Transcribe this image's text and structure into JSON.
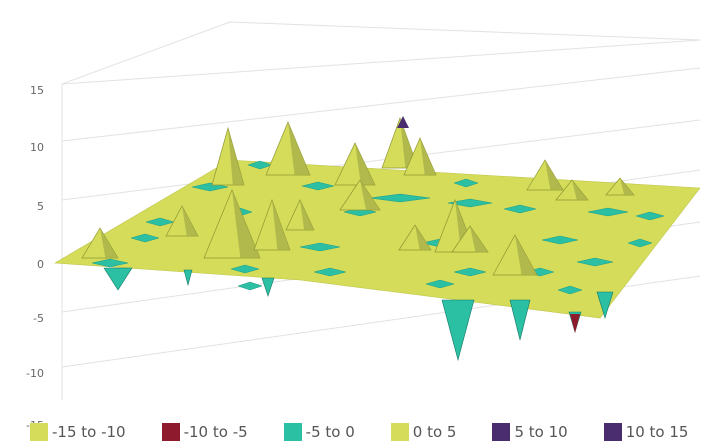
{
  "chart_data": {
    "type": "surface",
    "z_axis": {
      "ticks": [
        "15",
        "10",
        "5",
        "0",
        "-5",
        "-10",
        "-15"
      ],
      "range": [
        -15,
        15
      ]
    },
    "legend_position": "bottom",
    "legend": [
      {
        "label": "-15 to -10",
        "color": "#d4dc5a"
      },
      {
        "label": "-10 to -5",
        "color": "#8e1a2e"
      },
      {
        "label": "-5 to 0",
        "color": "#2bbfa4"
      },
      {
        "label": "0 to 5",
        "color": "#d4dc5a"
      },
      {
        "label": "5 to 10",
        "color": "#4a2d6e"
      },
      {
        "label": "10 to 15",
        "color": "#4a2d6e"
      }
    ],
    "grid": true
  }
}
